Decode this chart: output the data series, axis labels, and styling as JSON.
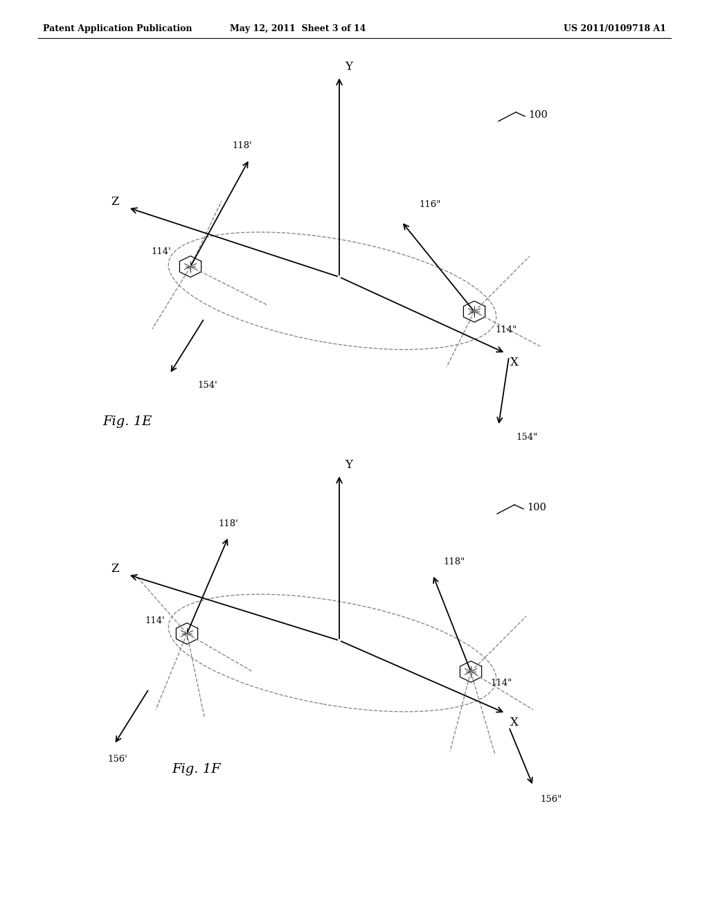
{
  "header_left": "Patent Application Publication",
  "header_mid": "May 12, 2011  Sheet 3 of 14",
  "header_right": "US 2011/0109718 A1",
  "fig1e_label": "Fig. 1E",
  "fig1f_label": "Fig. 1F",
  "ref_100": "100",
  "bg_color": "#ffffff",
  "line_color": "#000000",
  "dashed_color": "#666666"
}
